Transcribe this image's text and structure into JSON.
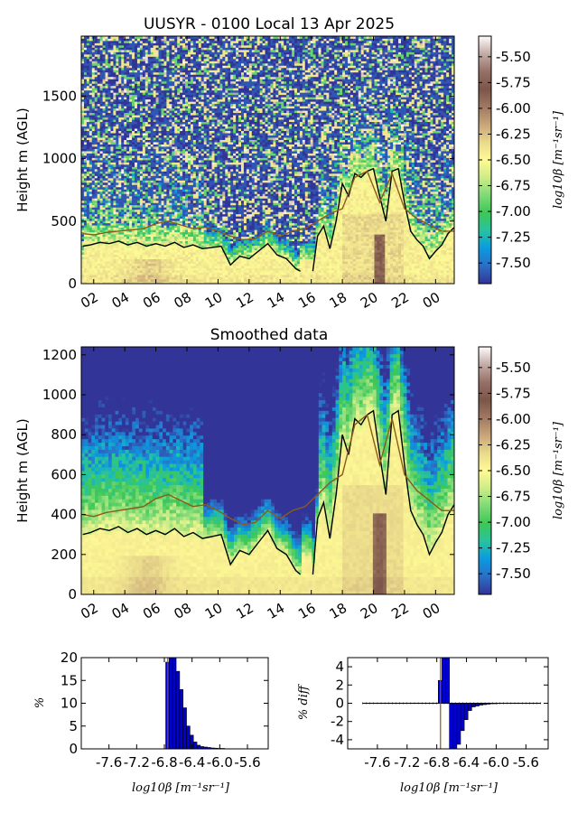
{
  "figure": {
    "panel1_title": "UUSYR - 0100 Local 13 Apr 2025",
    "panel2_title": "Smoothed data",
    "ylabel": "Height m (AGL)",
    "colorbar_label": "log10β [m⁻¹sr⁻¹]",
    "hist_xlabel": "log10β [m⁻¹sr⁻¹]",
    "hist1_ylabel": "%",
    "hist2_ylabel": "% diff"
  },
  "chart_data": [
    {
      "type": "heatmap",
      "name": "raw",
      "title": "UUSYR - 0100 Local 13 Apr 2025",
      "ylabel": "Height m (AGL)",
      "x_ticks": [
        "02",
        "04",
        "06",
        "08",
        "10",
        "12",
        "14",
        "16",
        "18",
        "20",
        "22",
        "00"
      ],
      "x_tick_hours": [
        2,
        4,
        6,
        8,
        10,
        12,
        14,
        16,
        18,
        20,
        22,
        24
      ],
      "x_range_hours": [
        1.2,
        25.2
      ],
      "y_ticks": [
        0,
        500,
        1000,
        1500
      ],
      "y_range": [
        0,
        1980
      ],
      "colorbar": {
        "label": "log10β [m⁻¹sr⁻¹]",
        "range": [
          -7.7,
          -5.3
        ],
        "ticks": [
          "-5.50",
          "-5.75",
          "-6.00",
          "-6.25",
          "-6.50",
          "-6.75",
          "-7.00",
          "-7.25",
          "-7.50"
        ],
        "tick_values": [
          -5.5,
          -5.75,
          -6.0,
          -6.25,
          -6.5,
          -6.75,
          -7.0,
          -7.25,
          -7.5
        ],
        "colors": [
          "#323497",
          "#2b6ec6",
          "#0a9ae0",
          "#27c3a0",
          "#3ec755",
          "#7edb77",
          "#cdec87",
          "#fffa95",
          "#e9d98b",
          "#c8a57a",
          "#a07862",
          "#7b5649",
          "#967067",
          "#c3aca6",
          "#fdfbfb"
        ]
      },
      "lines": [
        {
          "color": "#000000",
          "hours": [
            1.3,
            1.8,
            2.4,
            3.0,
            3.6,
            4.2,
            4.8,
            5.4,
            6.0,
            6.6,
            7.2,
            7.8,
            8.4,
            9.0,
            9.6,
            10.2,
            10.8,
            11.4,
            12.0,
            12.6,
            13.2,
            13.8,
            14.4,
            15.0,
            15.3
          ],
          "heights": [
            300,
            310,
            330,
            320,
            340,
            310,
            330,
            300,
            320,
            300,
            330,
            290,
            310,
            280,
            290,
            300,
            150,
            220,
            200,
            260,
            320,
            230,
            200,
            120,
            100
          ]
        },
        {
          "color": "#000000",
          "hours": [
            16.1,
            16.4,
            16.8,
            17.2,
            17.6,
            18.0,
            18.4,
            18.8,
            19.2,
            19.6,
            20.0,
            20.4,
            20.8,
            21.2,
            21.6,
            22.0,
            22.4,
            22.8,
            23.2,
            23.6,
            24.0,
            24.4,
            24.8,
            25.2
          ],
          "heights": [
            100,
            380,
            460,
            280,
            500,
            800,
            700,
            880,
            850,
            900,
            920,
            700,
            500,
            900,
            920,
            650,
            420,
            350,
            300,
            200,
            260,
            310,
            400,
            450
          ]
        },
        {
          "color": "#8b5a1a",
          "hours": [
            1.3,
            2.0,
            2.8,
            3.6,
            4.4,
            5.2,
            6.0,
            6.8,
            7.6,
            8.4,
            9.2,
            10.0,
            10.8,
            11.6,
            12.4,
            13.2,
            14.0,
            14.8,
            15.6,
            16.4,
            17.2,
            18.0,
            18.8,
            19.6,
            20.4,
            21.2,
            22.0,
            22.8,
            23.6,
            24.4,
            25.2
          ],
          "heights": [
            400,
            390,
            410,
            420,
            430,
            440,
            480,
            500,
            470,
            440,
            450,
            420,
            380,
            350,
            360,
            420,
            380,
            420,
            440,
            500,
            560,
            600,
            850,
            900,
            650,
            880,
            600,
            520,
            470,
            420,
            420
          ]
        }
      ]
    },
    {
      "type": "heatmap",
      "name": "smoothed",
      "title": "Smoothed data",
      "ylabel": "Height m (AGL)",
      "x_ticks": [
        "02",
        "04",
        "06",
        "08",
        "10",
        "12",
        "14",
        "16",
        "18",
        "20",
        "22",
        "00"
      ],
      "x_tick_hours": [
        2,
        4,
        6,
        8,
        10,
        12,
        14,
        16,
        18,
        20,
        22,
        24
      ],
      "x_range_hours": [
        1.2,
        25.2
      ],
      "y_ticks": [
        0,
        200,
        400,
        600,
        800,
        1000,
        1200
      ],
      "y_range": [
        0,
        1240
      ],
      "colorbar": {
        "label": "log10β [m⁻¹sr⁻¹]",
        "range": [
          -7.7,
          -5.3
        ],
        "ticks": [
          "-5.50",
          "-5.75",
          "-6.00",
          "-6.25",
          "-6.50",
          "-6.75",
          "-7.00",
          "-7.25",
          "-7.50"
        ],
        "tick_values": [
          -5.5,
          -5.75,
          -6.0,
          -6.25,
          -6.5,
          -6.75,
          -7.0,
          -7.25,
          -7.5
        ]
      }
    },
    {
      "type": "bar",
      "name": "histogram",
      "ylabel": "%",
      "xlabel": "log10β [m⁻¹sr⁻¹]",
      "x_ticks": [
        "-7.6",
        "-7.2",
        "-6.8",
        "-6.4",
        "-6.0",
        "-5.6"
      ],
      "x_tick_values": [
        -7.6,
        -7.2,
        -6.8,
        -6.4,
        -6.0,
        -5.6
      ],
      "xlim": [
        -8.0,
        -5.3
      ],
      "y_ticks": [
        0,
        5,
        10,
        15,
        20
      ],
      "ylim": [
        0,
        20
      ],
      "bin_width": 0.05,
      "bins_start": [
        -6.78,
        -6.73,
        -6.68,
        -6.63,
        -6.58,
        -6.53,
        -6.48,
        -6.43,
        -6.38,
        -6.33,
        -6.28,
        -6.23,
        -6.18,
        -6.13,
        -6.08,
        -6.03,
        -5.98
      ],
      "values": [
        19,
        20,
        20,
        17,
        13,
        9,
        5,
        3,
        1.5,
        0.8,
        0.5,
        0.4,
        0.3,
        0.2,
        0.15,
        0.1,
        0.1
      ],
      "vline": -6.75
    },
    {
      "type": "bar",
      "name": "histogram-difference",
      "ylabel": "% diff",
      "xlabel": "log10β [m⁻¹sr⁻¹]",
      "x_ticks": [
        "-7.6",
        "-7.2",
        "-6.8",
        "-6.4",
        "-6.0",
        "-5.6"
      ],
      "x_tick_values": [
        -7.6,
        -7.2,
        -6.8,
        -6.4,
        -6.0,
        -5.6
      ],
      "xlim": [
        -8.0,
        -5.3
      ],
      "y_ticks": [
        -4,
        -2,
        0,
        2,
        4
      ],
      "ylim": [
        -5,
        5
      ],
      "bin_width": 0.05,
      "bins_start": [
        -6.78,
        -6.73,
        -6.68,
        -6.63,
        -6.58,
        -6.53,
        -6.48,
        -6.43,
        -6.38,
        -6.33,
        -6.28,
        -6.23,
        -6.18,
        -6.13,
        -6.08,
        -6.03,
        -5.98
      ],
      "values": [
        2.5,
        5,
        5,
        -5,
        -5,
        -4.5,
        -3,
        -1.8,
        -0.8,
        -0.4,
        -0.3,
        -0.2,
        -0.15,
        -0.1,
        -0.05,
        -0.05,
        0
      ],
      "zero_line": [
        -7.8,
        -5.4
      ],
      "vline": -6.75
    }
  ]
}
